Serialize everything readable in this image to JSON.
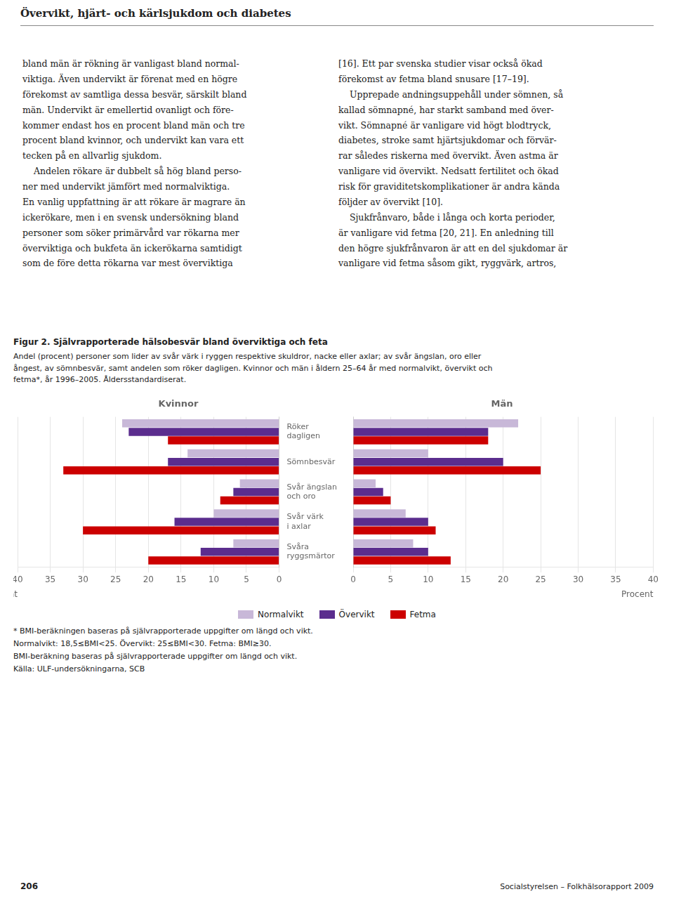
{
  "page_title": "Övervikt, hjärt- och kärlsjukdom och diabetes",
  "text_left": "bland män är rökning är vanligast bland normal-\nviktiga. Även undervikt är förenat med en högre\nförekomst av samtliga dessa besvär, särskilt bland\nmän. Undervikt är emellertid ovanligt och före-\nkommer endast hos en procent bland män och tre\nprocent bland kvinnor, och undervikt kan vara ett\ntecken på en allvarlig sjukdom.\n    Andelen rökare är dubbelt så hög bland perso-\nner med undervikt jämfört med normalviktiga.\nEn vanlig uppfattning är att rökare är magrare än\nickerökare, men i en svensk undersökning bland\npersoner som söker primärvård var rökarna mer\növerviktiga och bukfeta än ickerökarna samtidigt\nsom de före detta rökarna var mest överviktiga",
  "text_right": "[16]. Ett par svenska studier visar också ökad\nförekomst av fetma bland snusare [17–19].\n    Upprepade andningsuppehåll under sömnen, så\nkallad sömnapné, har starkt samband med över-\nvikt. Sömnapné är vanligare vid högt blodtryck,\ndiabetes, stroke samt hjärtsjukdomar och förvär-\nrar således riskerna med övervikt. Även astma är\nvanligare vid övervikt. Nedsatt fertilitet och ökad\nrisk för graviditetskomplikationer är andra kända\nföljder av övervikt [10].\n    Sjukfrånvaro, både i långa och korta perioder,\när vanligare vid fetma [20, 21]. En anledning till\nden högre sjukfrånvaron är att en del sjukdomar är\nvanligare vid fetma såsom gikt, ryggvärk, artros,",
  "figure_title": "Figur 2. Självrapporterade hälsobesvär bland överviktiga och feta",
  "figure_subtitle": "Andel (procent) personer som lider av svår värk i ryggen respektive skuldror, nacke eller axlar; av svår ängslan, oro eller\nångest, av sömnbesvär, samt andelen som röker dagligen. Kvinnor och män i åldern 25–64 år med normalvikt, övervikt och\nfetma*, år 1996–2005. Åldersstandardiserat.",
  "footnotes": [
    "* BMI-beräkningen baseras på självrapporterade uppgifter om längd och vikt.",
    "Normalvikt: 18,5≤BMI<25. Övervikt: 25≤BMI<30. Fetma: BMI≥30.",
    "BMI-beräkning baseras på självrapporterade uppgifter om längd och vikt.",
    "Källa: ULF-undersökningarna, SCB"
  ],
  "page_number": "206",
  "page_right": "Socialstyrelsen – Folkhälsorapport 2009",
  "chart_data": [
    {
      "type": "bar",
      "orientation": "horizontal",
      "title": "Kvinnor",
      "xlabel": "Procent",
      "categories": [
        "Röker\ndagligen",
        "Sömnbesvär",
        "Svår ängslan\noch oro",
        "Svår värk\ni axlar",
        "Svåra\nryggsmärtor"
      ],
      "series": [
        {
          "name": "Normalvikt",
          "color": "#c8b8d8",
          "values": [
            24,
            14,
            6,
            10,
            7
          ]
        },
        {
          "name": "Övervikt",
          "color": "#5b2d8e",
          "values": [
            23,
            17,
            7,
            16,
            12
          ]
        },
        {
          "name": "Fetma",
          "color": "#cc0000",
          "values": [
            17,
            33,
            9,
            30,
            20
          ]
        }
      ],
      "xlim": [
        40,
        0
      ],
      "xticks": [
        0,
        5,
        10,
        15,
        20,
        25,
        30,
        35,
        40
      ],
      "grid": true
    },
    {
      "type": "bar",
      "orientation": "horizontal",
      "title": "Män",
      "xlabel": "Procent",
      "categories": [
        "Röker\ndagligen",
        "Sömnbesvär",
        "Svår ängslan\noch oro",
        "Svår värk\ni axlar",
        "Svåra\nryggsmärtor"
      ],
      "series": [
        {
          "name": "Normalvikt",
          "color": "#c8b8d8",
          "values": [
            22,
            10,
            3,
            7,
            8
          ]
        },
        {
          "name": "Övervikt",
          "color": "#5b2d8e",
          "values": [
            18,
            20,
            4,
            10,
            10
          ]
        },
        {
          "name": "Fetma",
          "color": "#cc0000",
          "values": [
            18,
            25,
            5,
            11,
            13
          ]
        }
      ],
      "xlim": [
        0,
        40
      ],
      "xticks": [
        0,
        5,
        10,
        15,
        20,
        25,
        30,
        35,
        40
      ],
      "grid": true
    }
  ]
}
